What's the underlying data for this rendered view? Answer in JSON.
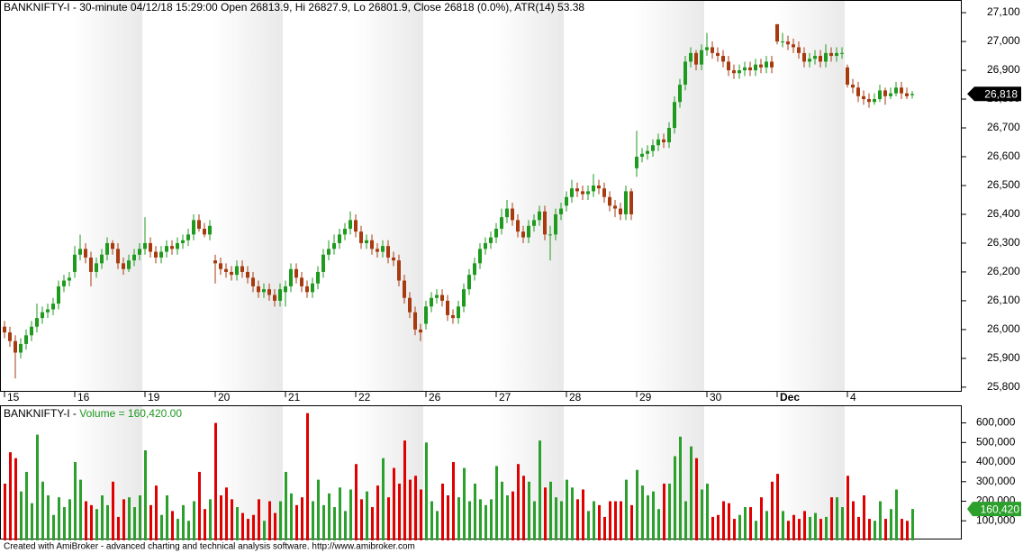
{
  "chart_data": {
    "type": "candlestick",
    "title": "BANKNIFTY-I - 30-minute 04/12/18 15:29:00 Open 26813.9, Hi 26827.9, Lo 26801.9, Close 26818 (0.0%), ATR(14) 53.38",
    "up_color": "#1e9a1e",
    "down_color": "#a83a10",
    "volume_up_color": "#2ca02c",
    "volume_down_color": "#e00000",
    "categories": [
      "15",
      null,
      null,
      null,
      null,
      null,
      null,
      null,
      null,
      null,
      null,
      null,
      null,
      "16",
      null,
      null,
      null,
      null,
      null,
      null,
      null,
      null,
      null,
      null,
      null,
      null,
      "19",
      null,
      null,
      null,
      null,
      null,
      null,
      null,
      null,
      null,
      null,
      null,
      null,
      "20",
      null,
      null,
      null,
      null,
      null,
      null,
      null,
      null,
      null,
      null,
      null,
      null,
      "21",
      null,
      null,
      null,
      null,
      null,
      null,
      null,
      null,
      null,
      null,
      null,
      null,
      "22",
      null,
      null,
      null,
      null,
      null,
      null,
      null,
      null,
      null,
      null,
      null,
      null,
      "26",
      null,
      null,
      null,
      null,
      null,
      null,
      null,
      null,
      null,
      null,
      null,
      null,
      "27",
      null,
      null,
      null,
      null,
      null,
      null,
      null,
      null,
      null,
      null,
      null,
      null,
      "28",
      null,
      null,
      null,
      null,
      null,
      null,
      null,
      null,
      null,
      null,
      null,
      null,
      "29",
      null,
      null,
      null,
      null,
      null,
      null,
      null,
      null,
      null,
      null,
      null,
      null,
      "30",
      null,
      null,
      null,
      null,
      null,
      null,
      null,
      null,
      null,
      null,
      null,
      null,
      "Dec",
      null,
      null,
      null,
      null,
      null,
      null,
      null,
      null,
      null,
      null,
      null,
      null,
      "4",
      null,
      null,
      null,
      null,
      null,
      null,
      null,
      null,
      null,
      null,
      null,
      null
    ],
    "open": [
      26010,
      25990,
      25960,
      25920,
      25950,
      25980,
      26010,
      26040,
      26060,
      26070,
      26090,
      26150,
      26170,
      26200,
      26260,
      26280,
      26250,
      26200,
      26230,
      26260,
      26300,
      26280,
      26230,
      26210,
      26240,
      26260,
      26280,
      26300,
      26270,
      26250,
      26270,
      26290,
      26280,
      26300,
      26310,
      26330,
      26380,
      26350,
      26330,
      26240,
      26230,
      26210,
      26200,
      26190,
      26220,
      26200,
      26180,
      26150,
      26130,
      26140,
      26120,
      26100,
      26130,
      26150,
      26210,
      26180,
      26150,
      26130,
      26160,
      26200,
      26260,
      26280,
      26300,
      26330,
      26350,
      26380,
      26340,
      26300,
      26310,
      26280,
      26270,
      26290,
      26250,
      26240,
      26170,
      26110,
      26060,
      26000,
      26020,
      26080,
      26110,
      26120,
      26100,
      26050,
      26040,
      26080,
      26140,
      26190,
      26230,
      26280,
      26300,
      26320,
      26350,
      26390,
      26420,
      26380,
      26340,
      26320,
      26360,
      26380,
      26410,
      26330,
      26330,
      26400,
      26430,
      26460,
      26490,
      26480,
      26470,
      26480,
      26500,
      26490,
      26460,
      26430,
      26420,
      26400,
      26480,
      26560,
      26600,
      26610,
      26620,
      26640,
      26660,
      26650,
      26700,
      26790,
      26850,
      26930,
      26960,
      26920,
      26970,
      26980,
      26960,
      26950,
      26930,
      26900,
      26890,
      26900,
      26910,
      26900,
      26920,
      26910,
      26930,
      27060,
      27000,
      27000,
      26990,
      26980,
      26960,
      26930,
      26940,
      26950,
      26930,
      26960,
      26950,
      26960,
      26910,
      26850,
      26840,
      26810,
      26800,
      26790,
      26800,
      26830,
      26810,
      26820,
      26840,
      26820,
      26813.9
    ],
    "high": [
      26030,
      26010,
      25980,
      25970,
      26000,
      26030,
      26090,
      26080,
      26090,
      26110,
      26170,
      26190,
      26200,
      26290,
      26330,
      26300,
      26270,
      26250,
      26280,
      26320,
      26310,
      26300,
      26250,
      26260,
      26280,
      26300,
      26390,
      26320,
      26290,
      26290,
      26310,
      26310,
      26320,
      26330,
      26350,
      26400,
      26400,
      26370,
      26380,
      26260,
      26250,
      26230,
      26220,
      26240,
      26240,
      26220,
      26200,
      26170,
      26160,
      26160,
      26140,
      26160,
      26170,
      26230,
      26230,
      26200,
      26170,
      26180,
      26220,
      26280,
      26310,
      26330,
      26350,
      26370,
      26410,
      26400,
      26360,
      26330,
      26330,
      26300,
      26310,
      26310,
      26270,
      26260,
      26190,
      26130,
      26080,
      26020,
      26100,
      26130,
      26140,
      26140,
      26120,
      26070,
      26100,
      26160,
      26210,
      26250,
      26300,
      26320,
      26340,
      26370,
      26420,
      26450,
      26440,
      26400,
      26360,
      26380,
      26400,
      26430,
      26430,
      26360,
      26420,
      26440,
      26480,
      26520,
      26510,
      26500,
      26500,
      26540,
      26520,
      26510,
      26480,
      26450,
      26440,
      26500,
      26490,
      26690,
      26630,
      26640,
      26660,
      26680,
      26680,
      26720,
      26810,
      26870,
      26950,
      26980,
      26970,
      26990,
      27030,
      27000,
      26980,
      26970,
      26950,
      26920,
      26920,
      26930,
      26930,
      26940,
      26940,
      26950,
      26950,
      27060,
      27030,
      27020,
      27010,
      27000,
      26980,
      26960,
      26970,
      26970,
      26990,
      26980,
      26980,
      26980,
      26920,
      26870,
      26860,
      26830,
      26820,
      26820,
      26850,
      26840,
      26840,
      26860,
      26860,
      26840,
      26827.9
    ],
    "low": [
      25970,
      25940,
      25830,
      25900,
      25930,
      25960,
      25990,
      26020,
      26040,
      26050,
      26070,
      26130,
      26150,
      26180,
      26240,
      26230,
      26150,
      26180,
      26210,
      26240,
      26260,
      26210,
      26190,
      26200,
      26220,
      26240,
      26260,
      26250,
      26230,
      26230,
      26250,
      26260,
      26260,
      26280,
      26290,
      26310,
      26340,
      26320,
      26310,
      26160,
      26190,
      26180,
      26170,
      26170,
      26180,
      26160,
      26130,
      26110,
      26110,
      26100,
      26080,
      26080,
      26080,
      26130,
      26160,
      26130,
      26110,
      26110,
      26140,
      26180,
      26240,
      26260,
      26280,
      26310,
      26330,
      26320,
      26280,
      26280,
      26260,
      26250,
      26250,
      26230,
      26220,
      26150,
      26090,
      26040,
      25980,
      25960,
      26000,
      26060,
      26090,
      26080,
      26030,
      26020,
      26020,
      26060,
      26120,
      26170,
      26210,
      26260,
      26280,
      26300,
      26330,
      26370,
      26360,
      26320,
      26300,
      26300,
      26340,
      26360,
      26310,
      26240,
      26310,
      26380,
      26410,
      26440,
      26460,
      26450,
      26450,
      26460,
      26470,
      26440,
      26410,
      26390,
      26380,
      26380,
      26380,
      26530,
      26580,
      26590,
      26600,
      26620,
      26630,
      26630,
      26680,
      26770,
      26830,
      26910,
      26900,
      26900,
      26950,
      26940,
      26930,
      26910,
      26880,
      26870,
      26870,
      26880,
      26880,
      26880,
      26890,
      26890,
      26890,
      26990,
      26980,
      26970,
      26960,
      26940,
      26910,
      26910,
      26920,
      26910,
      26910,
      26930,
      26930,
      26940,
      26840,
      26820,
      26790,
      26780,
      26770,
      26780,
      26790,
      26780,
      26800,
      26810,
      26800,
      26800,
      26801.9
    ],
    "close": [
      25990,
      25960,
      25920,
      25950,
      25980,
      26010,
      26040,
      26060,
      26070,
      26090,
      26150,
      26170,
      26180,
      26260,
      26280,
      26250,
      26200,
      26230,
      26260,
      26300,
      26280,
      26230,
      26210,
      26240,
      26260,
      26280,
      26300,
      26270,
      26250,
      26270,
      26290,
      26280,
      26300,
      26310,
      26330,
      26380,
      26350,
      26330,
      26360,
      26230,
      26210,
      26200,
      26190,
      26220,
      26200,
      26180,
      26150,
      26130,
      26140,
      26120,
      26100,
      26140,
      26150,
      26210,
      26180,
      26150,
      26130,
      26160,
      26200,
      26260,
      26280,
      26300,
      26330,
      26350,
      26380,
      26340,
      26300,
      26310,
      26280,
      26270,
      26290,
      26250,
      26240,
      26170,
      26110,
      26060,
      26000,
      25990,
      26080,
      26110,
      26120,
      26100,
      26050,
      26040,
      26080,
      26140,
      26190,
      26230,
      26280,
      26300,
      26320,
      26350,
      26390,
      26420,
      26380,
      26340,
      26320,
      26360,
      26380,
      26410,
      26330,
      26330,
      26400,
      26420,
      26460,
      26490,
      26480,
      26470,
      26480,
      26500,
      26490,
      26460,
      26430,
      26420,
      26400,
      26480,
      26400,
      26600,
      26610,
      26620,
      26640,
      26660,
      26650,
      26700,
      26790,
      26850,
      26930,
      26960,
      26920,
      26970,
      26980,
      26960,
      26950,
      26930,
      26900,
      26890,
      26900,
      26910,
      26900,
      26920,
      26910,
      26930,
      26910,
      27000,
      27000,
      26990,
      26980,
      26960,
      26930,
      26940,
      26950,
      26930,
      26960,
      26950,
      26960,
      26960,
      26850,
      26840,
      26810,
      26800,
      26790,
      26800,
      26830,
      26810,
      26820,
      26840,
      26820,
      26810,
      26818
    ],
    "ylim": [
      25784,
      27144
    ],
    "yticks": [
      {
        "value": 25800,
        "label": "25,800"
      },
      {
        "value": 25900,
        "label": "25,900"
      },
      {
        "value": 26000,
        "label": "26,000"
      },
      {
        "value": 26100,
        "label": "26,100"
      },
      {
        "value": 26200,
        "label": "26,200"
      },
      {
        "value": 26300,
        "label": "26,300"
      },
      {
        "value": 26400,
        "label": "26,400"
      },
      {
        "value": 26500,
        "label": "26,500"
      },
      {
        "value": 26600,
        "label": "26,600"
      },
      {
        "value": 26700,
        "label": "26,700"
      },
      {
        "value": 26800,
        "label": "26,800"
      },
      {
        "value": 26900,
        "label": "26,900"
      },
      {
        "value": 27000,
        "label": "27,000"
      },
      {
        "value": 27100,
        "label": "27,100"
      }
    ],
    "last_price": 26818,
    "last_price_label": "26,818",
    "volume": {
      "header_prefix": "BANKNIFTY-I - ",
      "header": "Volume = 160,420.00",
      "values": [
        290000,
        450000,
        420000,
        250000,
        350000,
        190000,
        540000,
        300000,
        230000,
        130000,
        220000,
        170000,
        210000,
        400000,
        310000,
        200000,
        180000,
        160000,
        230000,
        180000,
        300000,
        120000,
        210000,
        220000,
        170000,
        230000,
        460000,
        180000,
        280000,
        130000,
        230000,
        150000,
        110000,
        180000,
        100000,
        200000,
        350000,
        160000,
        210000,
        600000,
        230000,
        270000,
        210000,
        170000,
        140000,
        110000,
        130000,
        210000,
        100000,
        200000,
        140000,
        200000,
        350000,
        240000,
        180000,
        220000,
        650000,
        200000,
        310000,
        180000,
        240000,
        170000,
        270000,
        150000,
        260000,
        390000,
        210000,
        250000,
        170000,
        280000,
        420000,
        220000,
        370000,
        290000,
        510000,
        310000,
        330000,
        260000,
        500000,
        200000,
        150000,
        290000,
        230000,
        400000,
        220000,
        370000,
        200000,
        290000,
        210000,
        180000,
        210000,
        380000,
        300000,
        230000,
        250000,
        390000,
        330000,
        300000,
        200000,
        510000,
        270000,
        300000,
        220000,
        200000,
        310000,
        270000,
        210000,
        260000,
        150000,
        200000,
        180000,
        120000,
        200000,
        200000,
        200000,
        310000,
        180000,
        360000,
        280000,
        230000,
        250000,
        160000,
        290000,
        290000,
        430000,
        530000,
        200000,
        480000,
        420000,
        260000,
        290000,
        120000,
        130000,
        200000,
        190000,
        110000,
        130000,
        170000,
        170000,
        100000,
        220000,
        150000,
        300000,
        340000,
        150000,
        100000,
        130000,
        110000,
        150000,
        120000,
        140000,
        110000,
        120000,
        220000,
        220000,
        170000,
        330000,
        200000,
        120000,
        230000,
        110000,
        100000,
        200000,
        110000,
        160000,
        260000,
        110000,
        100000,
        160420
      ],
      "ylim": [
        0,
        690000
      ],
      "yticks": [
        {
          "value": 100000,
          "label": "100,000"
        },
        {
          "value": 200000,
          "label": "200,000"
        },
        {
          "value": 300000,
          "label": "300,000"
        },
        {
          "value": 400000,
          "label": "400,000"
        },
        {
          "value": 500000,
          "label": "500,000"
        },
        {
          "value": 600000,
          "label": "600,000"
        }
      ],
      "last_label": "160,420"
    },
    "footer": "Created with AmiBroker - advanced charting and technical analysis software. http://www.amibroker.com"
  }
}
